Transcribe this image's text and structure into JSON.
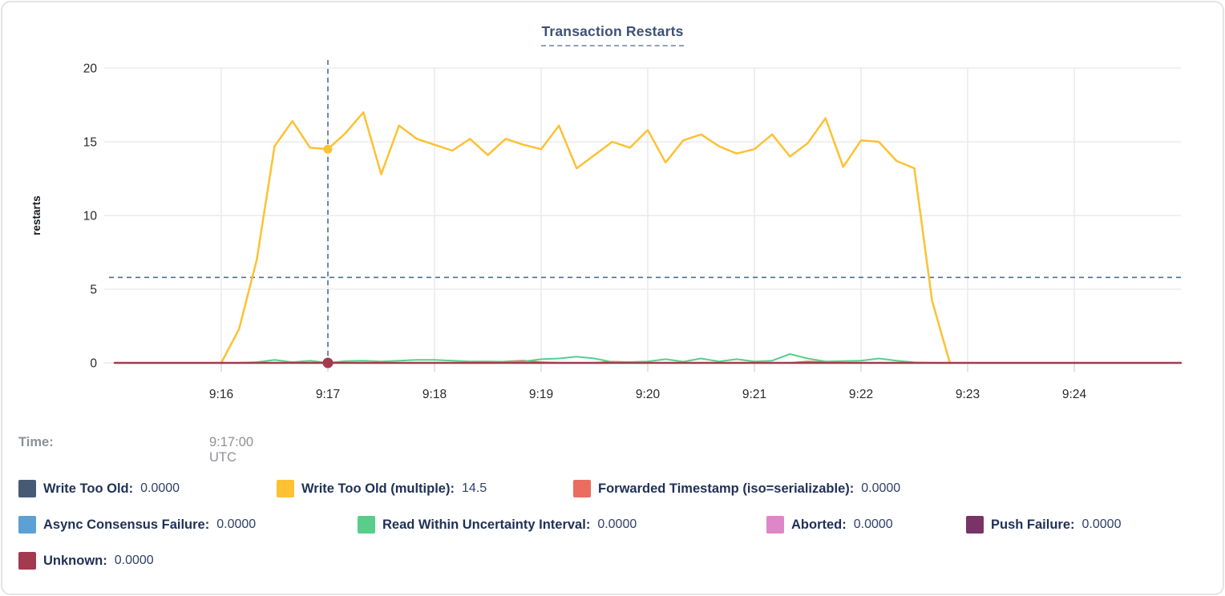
{
  "header": {
    "title": "Transaction Restarts"
  },
  "hover": {
    "time_label": "Time:",
    "time_value": "9:17:00 UTC"
  },
  "chart_data": {
    "type": "line",
    "title": "Transaction Restarts",
    "xlabel": "",
    "ylabel": "restarts",
    "ylim": [
      0,
      20
    ],
    "yticks": [
      0,
      5,
      10,
      15,
      20
    ],
    "x_domain_sec": [
      0,
      600
    ],
    "x_ticks": [
      {
        "sec": 60,
        "label": "9:16"
      },
      {
        "sec": 120,
        "label": "9:17"
      },
      {
        "sec": 180,
        "label": "9:18"
      },
      {
        "sec": 240,
        "label": "9:19"
      },
      {
        "sec": 300,
        "label": "9:20"
      },
      {
        "sec": 360,
        "label": "9:21"
      },
      {
        "sec": 420,
        "label": "9:22"
      },
      {
        "sec": 480,
        "label": "9:23"
      },
      {
        "sec": 540,
        "label": "9:24"
      }
    ],
    "grid": true,
    "legend_position": "bottom",
    "series": [
      {
        "name": "Write Too Old",
        "color": "#475a73",
        "width": 1.5,
        "constant": 0,
        "range_sec": [
          0,
          600
        ]
      },
      {
        "name": "Write Too Old (multiple)",
        "color": "#fdc133",
        "width": 2.5,
        "start_sec": 60,
        "step_sec": 10,
        "values": [
          0,
          2.3,
          7.0,
          14.7,
          16.4,
          14.6,
          14.5,
          15.6,
          17.0,
          12.8,
          16.1,
          15.2,
          14.8,
          14.4,
          15.2,
          14.1,
          15.2,
          14.8,
          14.5,
          16.1,
          13.2,
          14.1,
          15.0,
          14.6,
          15.8,
          13.6,
          15.1,
          15.5,
          14.7,
          14.2,
          14.5,
          15.5,
          14.0,
          14.9,
          16.6,
          13.3,
          15.1,
          15.0,
          13.7,
          13.2,
          4.2,
          0
        ]
      },
      {
        "name": "Forwarded Timestamp (iso=serializable)",
        "color": "#e96e60",
        "width": 2,
        "start_sec": 60,
        "step_sec": 10,
        "values": [
          0,
          0,
          0,
          0,
          0,
          0,
          0,
          0,
          0,
          0,
          0,
          0,
          0,
          0,
          0,
          0,
          0.1,
          0.15,
          0.05,
          0,
          0,
          0,
          0.08,
          0.05,
          0,
          0,
          0,
          0,
          0,
          0,
          0,
          0,
          0,
          0.1,
          0.05,
          0,
          0,
          0,
          0,
          0,
          0,
          0
        ]
      },
      {
        "name": "Async Consensus Failure",
        "color": "#5da0d6",
        "width": 1.5,
        "constant": 0,
        "range_sec": [
          0,
          600
        ]
      },
      {
        "name": "Read Within Uncertainty Interval",
        "color": "#58ce8a",
        "width": 2,
        "start_sec": 60,
        "step_sec": 10,
        "values": [
          0,
          0,
          0.05,
          0.2,
          0.05,
          0.15,
          0,
          0.12,
          0.15,
          0.1,
          0.15,
          0.2,
          0.2,
          0.15,
          0.1,
          0.1,
          0.08,
          0.1,
          0.25,
          0.3,
          0.42,
          0.3,
          0.06,
          0.06,
          0.1,
          0.25,
          0.08,
          0.3,
          0.1,
          0.25,
          0.1,
          0.15,
          0.6,
          0.3,
          0.1,
          0.12,
          0.15,
          0.3,
          0.15,
          0.03,
          0,
          0
        ]
      },
      {
        "name": "Aborted",
        "color": "#dd87c8",
        "width": 1.5,
        "constant": 0,
        "range_sec": [
          0,
          600
        ]
      },
      {
        "name": "Push Failure",
        "color": "#7a3366",
        "width": 1.5,
        "constant": 0,
        "range_sec": [
          0,
          600
        ]
      },
      {
        "name": "Unknown",
        "color": "#a23b50",
        "width": 2.5,
        "constant": 0,
        "range_sec": [
          0,
          600
        ]
      }
    ],
    "crosshair": {
      "x_sec": 120,
      "x_label": "9:17",
      "y_value": 5.8,
      "color": "#4d7090"
    },
    "hover_points": [
      {
        "series_index": 1,
        "x_sec": 120,
        "value": 14.5,
        "radius": 5.5
      },
      {
        "series_index": 7,
        "x_sec": 120,
        "value": 0,
        "radius": 6.5
      }
    ]
  },
  "legend": {
    "rows": [
      {
        "items": [
          {
            "label": "Write Too Old:",
            "value": "0.0000",
            "color": "#475a73"
          },
          {
            "label": "Write Too Old (multiple):",
            "value": "14.5",
            "color": "#fdc133"
          },
          {
            "label": "Forwarded Timestamp (iso=serializable):",
            "value": "0.0000",
            "color": "#e96e60"
          }
        ]
      },
      {
        "items": [
          {
            "label": "Async Consensus Failure:",
            "value": "0.0000",
            "color": "#5da0d6"
          },
          {
            "label": "Read Within Uncertainty Interval:",
            "value": "0.0000",
            "color": "#58ce8a"
          },
          {
            "label": "Aborted:",
            "value": "0.0000",
            "color": "#dd87c8"
          },
          {
            "label": "Push Failure:",
            "value": "0.0000",
            "color": "#7a3366"
          }
        ]
      },
      {
        "items": [
          {
            "label": "Unknown:",
            "value": "0.0000",
            "color": "#a23b50"
          }
        ]
      }
    ]
  }
}
